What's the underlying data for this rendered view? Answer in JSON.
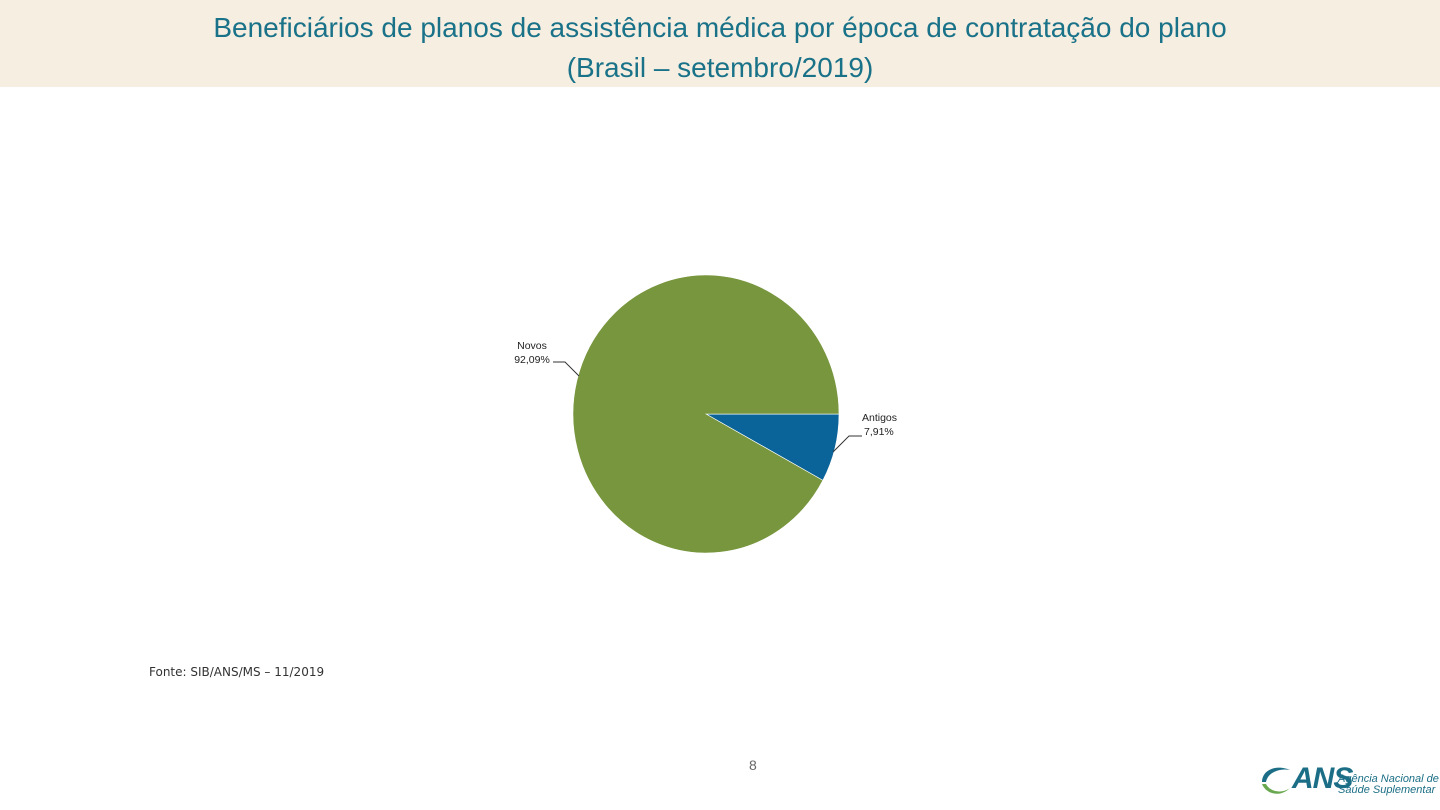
{
  "header": {
    "title_line1": "Beneficiários de planos de assistência médica por época de contratação do plano",
    "title_line2": "(Brasil – setembro/2019)",
    "band_color": "#f5eee1",
    "title_color": "#1a7289"
  },
  "chart_data": {
    "type": "pie",
    "title": "Beneficiários de planos de assistência médica por época de contratação do plano (Brasil – setembro/2019)",
    "slices": [
      {
        "label": "Novos",
        "value": 92.09,
        "value_label": "92,09%",
        "color": "#77963d"
      },
      {
        "label": "Antigos",
        "value": 7.91,
        "value_label": "7,91%",
        "color": "#0a6399"
      }
    ]
  },
  "footer": {
    "source": "Fonte: SIB/ANS/MS – 11/2019",
    "page_number": "8"
  },
  "logo": {
    "icon": "ans-swirl-logo-icon",
    "acronym": "ANS",
    "line1": "Agência Nacional de",
    "line2": "Saúde Suplementar",
    "colors": {
      "teal": "#1b6e86",
      "green": "#6aa84f"
    }
  }
}
